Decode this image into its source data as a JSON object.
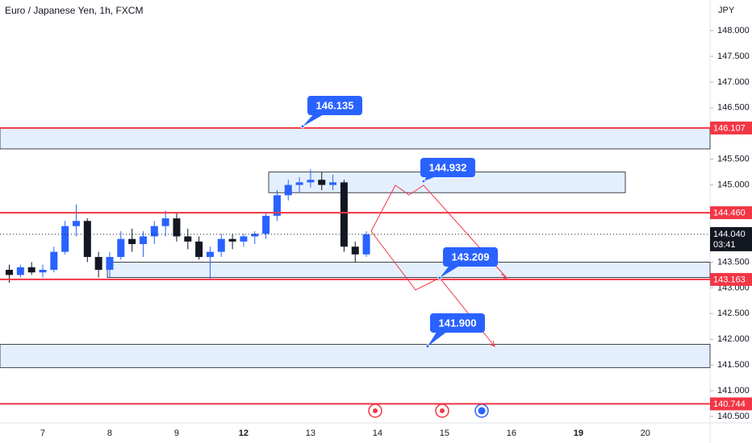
{
  "chart_data": {
    "type": "candlestick",
    "title": "Euro / Japanese Yen, 1h, FXCM",
    "currency": "JPY",
    "categories": [
      null,
      null,
      null,
      "7",
      null,
      null,
      null,
      null,
      null,
      "8",
      null,
      null,
      null,
      null,
      null,
      "9",
      null,
      null,
      null,
      null,
      null,
      "12",
      null,
      null,
      null,
      null,
      null,
      "13",
      null,
      null,
      null,
      null,
      null,
      "14",
      null,
      null,
      null,
      null,
      null,
      "15",
      null,
      null,
      null,
      null,
      null,
      "16",
      null,
      null,
      null,
      null,
      null,
      "19",
      null,
      null,
      null,
      null,
      null,
      "20",
      null,
      null,
      null,
      null,
      null
    ],
    "open": [
      143.35,
      143.25,
      143.4,
      143.3,
      143.35,
      143.7,
      144.2,
      144.3,
      143.6,
      143.35,
      143.6,
      143.95,
      143.85,
      144.0,
      144.2,
      144.35,
      144.0,
      143.9,
      143.6,
      143.7,
      143.95,
      143.9,
      144.0,
      144.05,
      144.4,
      144.8,
      145.0,
      145.05,
      145.1,
      145.0,
      145.05,
      143.8,
      143.65,
      null,
      null,
      null,
      null,
      null,
      null,
      null,
      null,
      null,
      null,
      null,
      null,
      null,
      null,
      null,
      null,
      null,
      null,
      null,
      null,
      null,
      null,
      null,
      null,
      null,
      null,
      null,
      null,
      null,
      null
    ],
    "high": [
      143.45,
      143.45,
      143.5,
      143.45,
      143.8,
      144.3,
      144.62,
      144.35,
      143.7,
      143.7,
      144.1,
      144.15,
      144.1,
      144.3,
      144.5,
      144.45,
      144.15,
      144.0,
      143.8,
      144.05,
      144.05,
      144.05,
      144.1,
      144.45,
      144.9,
      145.1,
      145.15,
      145.3,
      145.25,
      145.2,
      145.1,
      143.9,
      144.1,
      null,
      null,
      null,
      null,
      null,
      null,
      null,
      null,
      null,
      null,
      null,
      null,
      null,
      null,
      null,
      null,
      null,
      null,
      null,
      null,
      null,
      null,
      null,
      null,
      null,
      null,
      null,
      null,
      null,
      null
    ],
    "low": [
      143.1,
      143.2,
      143.25,
      143.2,
      143.3,
      143.65,
      144.0,
      143.5,
      143.2,
      143.2,
      143.55,
      143.7,
      143.6,
      143.85,
      144.0,
      143.9,
      143.75,
      143.55,
      143.15,
      143.6,
      143.75,
      143.8,
      143.85,
      143.95,
      144.3,
      144.7,
      144.85,
      144.95,
      144.9,
      144.9,
      143.7,
      143.5,
      143.6,
      null,
      null,
      null,
      null,
      null,
      null,
      null,
      null,
      null,
      null,
      null,
      null,
      null,
      null,
      null,
      null,
      null,
      null,
      null,
      null,
      null,
      null,
      null,
      null,
      null,
      null,
      null,
      null,
      null,
      null
    ],
    "close": [
      143.25,
      143.4,
      143.3,
      143.35,
      143.7,
      144.2,
      144.3,
      143.6,
      143.35,
      143.6,
      143.95,
      143.85,
      144.0,
      144.2,
      144.35,
      144.0,
      143.9,
      143.6,
      143.7,
      143.95,
      143.9,
      144.0,
      144.05,
      144.4,
      144.8,
      145.0,
      145.05,
      145.1,
      145.0,
      145.05,
      143.8,
      143.65,
      144.04,
      null,
      null,
      null,
      null,
      null,
      null,
      null,
      null,
      null,
      null,
      null,
      null,
      null,
      null,
      null,
      null,
      null,
      null,
      null,
      null,
      null,
      null,
      null,
      null,
      null,
      null,
      null,
      null,
      null,
      null
    ],
    "up_color": "#2962ff",
    "down_color": "#131722",
    "ylim": [
      140.375,
      148.595
    ],
    "yticks": [
      {
        "value": 148,
        "label": "148.000"
      },
      {
        "value": 147.5,
        "label": "147.500"
      },
      {
        "value": 147,
        "label": "147.000"
      },
      {
        "value": 146.5,
        "label": "146.500"
      },
      {
        "value": 145.5,
        "label": "145.500"
      },
      {
        "value": 145,
        "label": "145.000"
      },
      {
        "value": 143.5,
        "label": "143.500"
      },
      {
        "value": 143,
        "label": "143.000"
      },
      {
        "value": 142.5,
        "label": "142.500"
      },
      {
        "value": 142,
        "label": "142.000"
      },
      {
        "value": 141.5,
        "label": "141.500"
      },
      {
        "value": 141,
        "label": "141.000"
      },
      {
        "value": 140.5,
        "label": "140.500"
      }
    ],
    "levels": [
      {
        "value": 146.107,
        "label": "146.107"
      },
      {
        "value": 144.46,
        "label": "144.460"
      },
      {
        "value": 143.163,
        "label": "143.163"
      },
      {
        "value": 140.744,
        "label": "140.744"
      }
    ],
    "level_color": "#f23645",
    "zones": [
      {
        "low": 145.7,
        "high": 146.107
      },
      {
        "low": 144.85,
        "high": 145.25
      },
      {
        "low": 143.2,
        "high": 143.5
      },
      {
        "low": 141.45,
        "high": 141.9
      }
    ],
    "annotations": [
      "146.135",
      "144.932",
      "143.209",
      "141.900"
    ],
    "last_price": {
      "value": 144.04,
      "label": "144.040",
      "countdown": "03:41"
    }
  }
}
